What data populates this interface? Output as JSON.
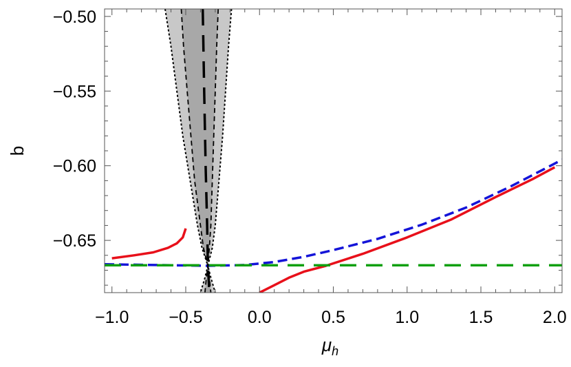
{
  "chart_data": {
    "type": "line",
    "xlabel": "μ",
    "xlabel_sub": "h",
    "ylabel": "b",
    "xlim": [
      -1.05,
      2.05
    ],
    "ylim": [
      -0.685,
      -0.495
    ],
    "x_ticks": [
      -1.0,
      -0.5,
      0.0,
      0.5,
      1.0,
      1.5,
      2.0
    ],
    "x_tick_labels": [
      "−1.0",
      "−0.5",
      "0.0",
      "0.5",
      "1.0",
      "1.5",
      "2.0"
    ],
    "y_ticks": [
      -0.5,
      -0.55,
      -0.6,
      -0.65
    ],
    "y_tick_labels": [
      "−0.50",
      "−0.55",
      "−0.60",
      "−0.65"
    ],
    "grid": false,
    "colors": {
      "outer_band": "#c8c8c8",
      "inner_band": "#a8a8a8",
      "red": "#e8101a",
      "blue": "#1414d8",
      "green": "#10a010",
      "black": "#000000"
    },
    "bands": [
      {
        "kind": "outer",
        "y": [
          -0.495,
          -0.52,
          -0.55,
          -0.58,
          -0.61,
          -0.64,
          -0.655,
          -0.667,
          -0.675,
          -0.685
        ],
        "x_left": [
          -0.64,
          -0.6,
          -0.56,
          -0.52,
          -0.47,
          -0.42,
          -0.39,
          -0.35,
          -0.37,
          -0.4
        ],
        "x_right": [
          -0.19,
          -0.21,
          -0.23,
          -0.25,
          -0.275,
          -0.3,
          -0.32,
          -0.35,
          -0.33,
          -0.3
        ]
      },
      {
        "kind": "inner",
        "y": [
          -0.495,
          -0.52,
          -0.55,
          -0.58,
          -0.61,
          -0.64,
          -0.655,
          -0.667,
          -0.675,
          -0.685
        ],
        "x_left": [
          -0.53,
          -0.515,
          -0.49,
          -0.465,
          -0.44,
          -0.4,
          -0.38,
          -0.35,
          -0.36,
          -0.37
        ],
        "x_right": [
          -0.28,
          -0.29,
          -0.3,
          -0.31,
          -0.32,
          -0.33,
          -0.34,
          -0.35,
          -0.34,
          -0.33
        ]
      }
    ],
    "series": [
      {
        "style": "solid",
        "color": "red",
        "x": [
          -1.0,
          -0.85,
          -0.72,
          -0.62,
          -0.56,
          -0.52,
          -0.5
        ],
        "y": [
          -0.662,
          -0.66,
          -0.658,
          -0.655,
          -0.652,
          -0.648,
          -0.642
        ]
      },
      {
        "style": "solid",
        "color": "red",
        "x": [
          0.0,
          0.1,
          0.2,
          0.3,
          0.45,
          0.7,
          1.0,
          1.3,
          1.6,
          1.85,
          2.0
        ],
        "y": [
          -0.685,
          -0.68,
          -0.675,
          -0.671,
          -0.667,
          -0.659,
          -0.648,
          -0.636,
          -0.621,
          -0.609,
          -0.601
        ]
      },
      {
        "style": "dashed",
        "color": "blue",
        "x": [
          -1.05,
          -0.7,
          -0.35,
          -0.1,
          0.1,
          0.3,
          0.5,
          0.8,
          1.1,
          1.4,
          1.7,
          2.05
        ],
        "y": [
          -0.666,
          -0.6665,
          -0.667,
          -0.6665,
          -0.6645,
          -0.661,
          -0.6565,
          -0.649,
          -0.6395,
          -0.628,
          -0.614,
          -0.596
        ]
      },
      {
        "style": "longdash",
        "color": "green",
        "x": [
          -1.05,
          2.05
        ],
        "y": [
          -0.6667,
          -0.6667
        ]
      },
      {
        "style": "longdash",
        "color": "black",
        "x": [
          -0.385,
          -0.375,
          -0.365,
          -0.355,
          -0.35,
          -0.345,
          -0.34
        ],
        "y": [
          -0.495,
          -0.55,
          -0.6,
          -0.64,
          -0.667,
          -0.675,
          -0.685
        ]
      },
      {
        "style": "dotted",
        "color": "black",
        "x": [
          -0.64,
          -0.6,
          -0.56,
          -0.52,
          -0.47,
          -0.42,
          -0.39,
          -0.35,
          -0.37,
          -0.4
        ],
        "y": [
          -0.495,
          -0.52,
          -0.55,
          -0.58,
          -0.61,
          -0.64,
          -0.655,
          -0.667,
          -0.675,
          -0.685
        ]
      },
      {
        "style": "dotted",
        "color": "black",
        "x": [
          -0.19,
          -0.21,
          -0.23,
          -0.25,
          -0.275,
          -0.3,
          -0.32,
          -0.35,
          -0.33,
          -0.3
        ],
        "y": [
          -0.495,
          -0.52,
          -0.55,
          -0.58,
          -0.61,
          -0.64,
          -0.655,
          -0.667,
          -0.675,
          -0.685
        ]
      },
      {
        "style": "shortdash",
        "color": "black",
        "x": [
          -0.53,
          -0.515,
          -0.49,
          -0.465,
          -0.44,
          -0.4,
          -0.38,
          -0.35,
          -0.36,
          -0.37
        ],
        "y": [
          -0.495,
          -0.52,
          -0.55,
          -0.58,
          -0.61,
          -0.64,
          -0.655,
          -0.667,
          -0.675,
          -0.685
        ]
      },
      {
        "style": "shortdash",
        "color": "black",
        "x": [
          -0.28,
          -0.29,
          -0.3,
          -0.31,
          -0.32,
          -0.33,
          -0.34,
          -0.35,
          -0.34,
          -0.33
        ],
        "y": [
          -0.495,
          -0.52,
          -0.55,
          -0.58,
          -0.61,
          -0.64,
          -0.655,
          -0.667,
          -0.675,
          -0.685
        ]
      }
    ]
  }
}
